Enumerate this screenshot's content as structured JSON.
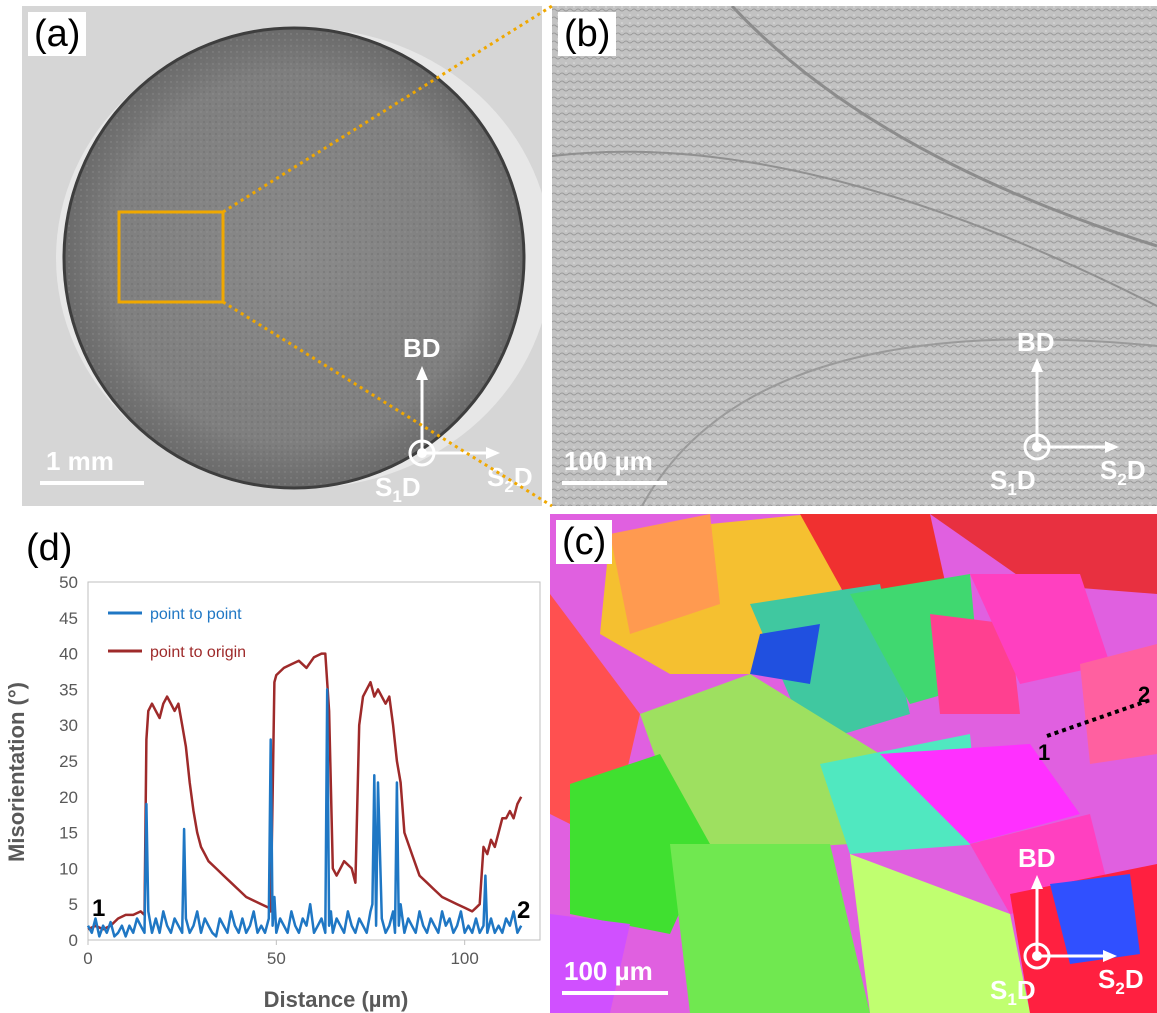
{
  "panels": {
    "a": {
      "label": "(a)",
      "scale_bar": "1 mm"
    },
    "b": {
      "label": "(b)",
      "scale_bar": "100 µm"
    },
    "c": {
      "label": "(c)",
      "scale_bar": "100 µm",
      "line_start": "1",
      "line_end": "2"
    },
    "d": {
      "label": "(d)"
    }
  },
  "axes": {
    "bd": "BD",
    "s1": "S",
    "s1_sub": "1",
    "s2": "S",
    "s2_sub": "2",
    "d": "D"
  },
  "colors": {
    "highlight_box": "#f0a800",
    "point_to_point": "#1f77c4",
    "point_to_origin": "#9e2a2a"
  },
  "chart_data": {
    "type": "line",
    "xlabel": "Distance (µm)",
    "ylabel": "Misorientation (°)",
    "xlim": [
      0,
      120
    ],
    "ylim": [
      0,
      50
    ],
    "xticks": [
      0,
      50,
      100
    ],
    "yticks": [
      0,
      5,
      10,
      15,
      20,
      25,
      30,
      35,
      40,
      45,
      50
    ],
    "grid": false,
    "legend_position": "top-left",
    "annotations": [
      "1",
      "2"
    ],
    "series": [
      {
        "name": "point to point",
        "color": "#1f77c4",
        "x": [
          0,
          1,
          2,
          3,
          4,
          5,
          6,
          7,
          8,
          9,
          10,
          11,
          12,
          13,
          14,
          15,
          15.5,
          16,
          17,
          18,
          19,
          20,
          21,
          22,
          23,
          24,
          25,
          25.5,
          26,
          27,
          28,
          29,
          30,
          31,
          32,
          33,
          34,
          35,
          36,
          37,
          38,
          39,
          40,
          41,
          42,
          43,
          44,
          45,
          46,
          47,
          48,
          48.5,
          49,
          49.5,
          50,
          51,
          52,
          53,
          54,
          55,
          56,
          57,
          58,
          59,
          60,
          61,
          62,
          63,
          63.5,
          64,
          64.5,
          65,
          66,
          67,
          68,
          69,
          70,
          71,
          72,
          73,
          74,
          75,
          75.5,
          76,
          76.5,
          77,
          78,
          79,
          80,
          81,
          81.5,
          82,
          82.5,
          83,
          84,
          85,
          86,
          87,
          88,
          89,
          90,
          91,
          92,
          93,
          94,
          95,
          96,
          97,
          98,
          99,
          100,
          101,
          102,
          103,
          104,
          105,
          105.5,
          106,
          107,
          108,
          109,
          110,
          111,
          112,
          113,
          114,
          115
        ],
        "values": [
          2,
          1,
          3,
          0.5,
          2,
          1,
          2.5,
          0.5,
          1,
          2,
          0.5,
          2,
          1,
          3,
          2,
          1,
          19,
          4,
          1,
          3,
          1,
          4,
          2,
          1,
          3,
          2,
          1,
          15.5,
          3,
          1,
          2,
          4,
          1,
          3,
          2,
          1,
          0.5,
          3,
          2,
          1,
          4,
          2,
          1,
          3,
          1,
          2,
          4,
          1,
          2,
          1,
          3,
          28,
          2,
          6,
          1,
          3,
          2,
          1,
          4,
          2,
          1,
          3,
          2,
          5,
          1,
          2,
          3,
          1,
          35,
          2,
          4,
          1,
          3,
          2,
          1,
          4,
          2,
          1,
          3,
          2,
          1,
          4,
          5,
          23,
          2,
          22,
          3,
          1,
          2,
          4,
          1,
          22,
          2,
          5,
          1,
          3,
          2,
          1,
          4,
          2,
          1,
          3,
          2,
          1,
          4,
          2,
          3,
          1,
          2,
          4,
          1,
          2,
          1,
          3,
          1,
          2,
          9,
          1,
          3,
          1,
          2,
          1,
          3,
          2,
          4,
          1,
          2
        ]
      },
      {
        "name": "point to origin",
        "color": "#9e2a2a",
        "x": [
          0,
          2,
          4,
          6,
          8,
          10,
          12,
          14,
          15,
          15.5,
          16,
          17,
          18,
          19,
          20,
          21,
          22,
          23,
          24,
          25,
          26,
          27,
          28,
          29,
          30,
          31,
          32,
          34,
          36,
          38,
          40,
          42,
          44,
          46,
          48,
          48.5,
          49,
          49.5,
          50,
          52,
          54,
          56,
          58,
          60,
          62,
          63,
          64,
          65,
          66,
          67,
          68,
          70,
          71,
          72,
          73,
          74,
          75,
          76,
          77,
          78,
          79,
          80,
          81,
          82,
          83,
          84,
          86,
          88,
          90,
          92,
          94,
          96,
          98,
          100,
          102,
          103,
          104,
          105,
          106,
          107,
          108,
          109,
          110,
          111,
          112,
          113,
          114,
          115
        ],
        "values": [
          1.5,
          2,
          1.5,
          2,
          3,
          3.5,
          3.5,
          4,
          3.5,
          28,
          32,
          33,
          32,
          31,
          33,
          34,
          33,
          32,
          33,
          30,
          27,
          22,
          18,
          15,
          13,
          12,
          11,
          10,
          9,
          8,
          7,
          6,
          5.5,
          5,
          4.5,
          4,
          20,
          36,
          37,
          38,
          38.5,
          39,
          38,
          39.5,
          40,
          40,
          32,
          10,
          9,
          10,
          11,
          10,
          8,
          30,
          34,
          35,
          36,
          34,
          35,
          34,
          33,
          34,
          30,
          25,
          22,
          15,
          12,
          9,
          8,
          7,
          6,
          5.5,
          5,
          4.5,
          4,
          4.5,
          5,
          13,
          12,
          14,
          13,
          15,
          17,
          17,
          18,
          17,
          19,
          20
        ]
      }
    ]
  }
}
